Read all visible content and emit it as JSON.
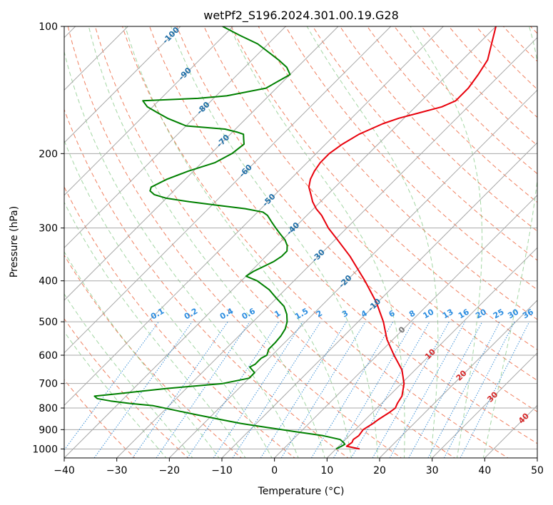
{
  "chart_data": {
    "type": "line",
    "title": "wetPf2_S196.2024.301.00.19.G28",
    "xlabel": "Temperature (°C)",
    "ylabel": "Pressure (hPa)",
    "xlim": [
      -40,
      50
    ],
    "ylim": [
      1050,
      100
    ],
    "y_scale": "log",
    "grid": true,
    "x_ticks": [
      -40,
      -30,
      -20,
      -10,
      0,
      10,
      20,
      30,
      40,
      50
    ],
    "y_ticks": [
      100,
      200,
      300,
      400,
      500,
      600,
      700,
      800,
      900,
      1000
    ],
    "skew_isotherm_labels": [
      -100,
      -90,
      -80,
      -70,
      -60,
      -50,
      -40,
      -30,
      -20,
      -10,
      0,
      10,
      20,
      30,
      40
    ],
    "mixing_ratio_labels": [
      "0.1",
      "0.2",
      "0.4",
      "0.6",
      "1",
      "1.5",
      "2",
      "3",
      "4",
      "6",
      "8",
      "10",
      "13",
      "16",
      "20",
      "25",
      "30",
      "36"
    ],
    "series": [
      {
        "color": "#e8000b",
        "pressure": [
          1000,
          985,
          965,
          950,
          930,
          900,
          870,
          850,
          820,
          800,
          780,
          750,
          700,
          650,
          600,
          550,
          500,
          450,
          400,
          350,
          320,
          300,
          280,
          270,
          260,
          250,
          240,
          230,
          220,
          210,
          200,
          190,
          180,
          170,
          165,
          160,
          155,
          150,
          140,
          130,
          120,
          110,
          100
        ],
        "temperature": [
          14.5,
          11.5,
          11.8,
          11.5,
          11.8,
          11.5,
          12.2,
          12.5,
          13.2,
          13.5,
          13.0,
          12.5,
          10.5,
          7.5,
          3.2,
          -1.2,
          -5.2,
          -10.2,
          -16.5,
          -24.0,
          -29.5,
          -33.5,
          -37.2,
          -39.5,
          -41.5,
          -43.2,
          -45.0,
          -46.2,
          -47.0,
          -47.5,
          -47.5,
          -46.8,
          -45.5,
          -43.0,
          -41.0,
          -38.0,
          -35.0,
          -33.5,
          -33.5,
          -34.2,
          -35.2,
          -37.5,
          -40.0
        ]
      },
      {
        "color": "#008000",
        "pressure": [
          1000,
          985,
          975,
          965,
          950,
          930,
          910,
          890,
          870,
          850,
          830,
          810,
          790,
          780,
          770,
          760,
          750,
          740,
          720,
          700,
          680,
          660,
          640,
          630,
          620,
          610,
          600,
          580,
          560,
          540,
          520,
          500,
          480,
          460,
          440,
          420,
          400,
          390,
          380,
          370,
          360,
          350,
          340,
          330,
          320,
          310,
          300,
          290,
          280,
          275,
          270,
          265,
          260,
          255,
          250,
          245,
          240,
          230,
          220,
          210,
          200,
          190,
          185,
          180,
          178,
          175,
          172,
          165,
          160,
          155,
          150,
          148,
          146,
          140,
          130,
          125,
          120,
          110,
          105,
          100
        ],
        "temperature": [
          10.0,
          10.5,
          10.8,
          10.2,
          9.0,
          5.0,
          -1.0,
          -7.0,
          -13.0,
          -18.0,
          -23.0,
          -28.0,
          -33.0,
          -38.0,
          -42.0,
          -45.0,
          -46.0,
          -42.0,
          -34.0,
          -24.0,
          -20.0,
          -20.0,
          -22.0,
          -21.5,
          -21.5,
          -21.5,
          -21.0,
          -21.8,
          -21.8,
          -22.0,
          -22.5,
          -23.5,
          -25.0,
          -27.0,
          -30.0,
          -33.0,
          -37.0,
          -40.0,
          -39.5,
          -38.5,
          -37.5,
          -37.0,
          -37.0,
          -38.0,
          -39.5,
          -41.5,
          -43.5,
          -45.5,
          -47.5,
          -49.0,
          -53.0,
          -59.0,
          -65.0,
          -70.0,
          -73.0,
          -74.5,
          -75.0,
          -73.5,
          -71.0,
          -67.5,
          -66.0,
          -65.5,
          -66.5,
          -67.5,
          -69.0,
          -72.0,
          -80.0,
          -85.0,
          -88.0,
          -91.0,
          -93.0,
          -83.0,
          -78.0,
          -72.0,
          -70.0,
          -72.0,
          -75.0,
          -82.0,
          -87.0,
          -92.0
        ]
      }
    ]
  }
}
